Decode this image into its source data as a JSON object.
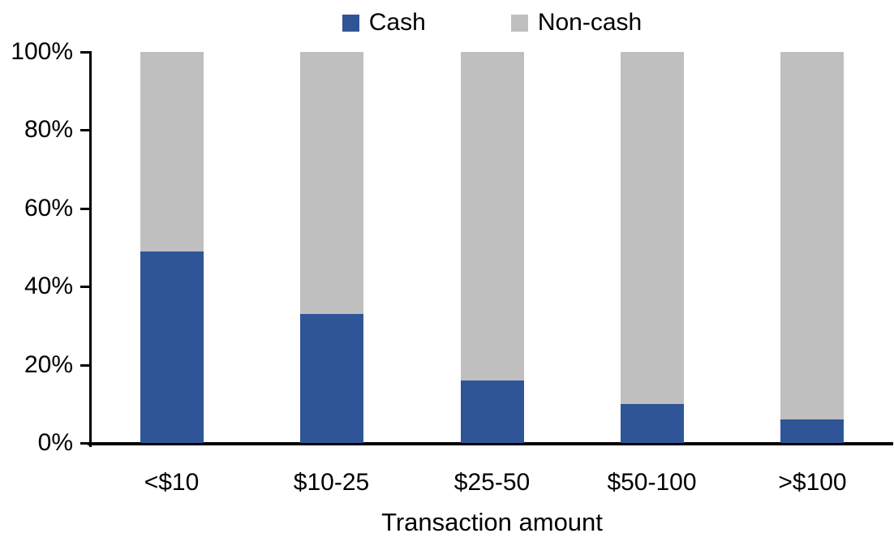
{
  "chart_data": {
    "type": "bar",
    "subtype": "stacked-100-percent-column",
    "title": "",
    "xlabel": "Transaction amount",
    "ylabel": "",
    "categories": [
      "<$10",
      "$10-25",
      "$25-50",
      "$50-100",
      ">$100"
    ],
    "series": [
      {
        "name": "Cash",
        "color": "#2F5597",
        "values": [
          49,
          33,
          16,
          10,
          6
        ]
      },
      {
        "name": "Non-cash",
        "color": "#BFBFBF",
        "values": [
          51,
          67,
          84,
          90,
          94
        ]
      }
    ],
    "ylim": [
      0,
      100
    ],
    "yticks": [
      {
        "value": 0,
        "label": "0%"
      },
      {
        "value": 20,
        "label": "20%"
      },
      {
        "value": 40,
        "label": "40%"
      },
      {
        "value": 60,
        "label": "60%"
      },
      {
        "value": 80,
        "label": "80%"
      },
      {
        "value": 100,
        "label": "100%"
      }
    ],
    "legend_position": "top",
    "grid": false,
    "axis_color": "#000000",
    "background_color": "#FFFFFF"
  }
}
